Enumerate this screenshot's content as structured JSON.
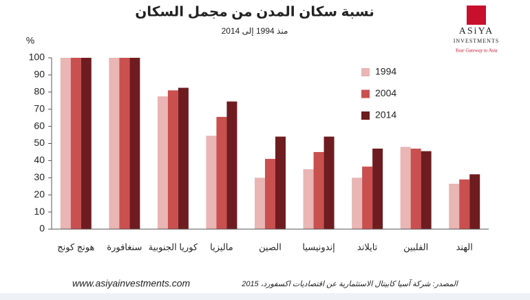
{
  "chart_data": {
    "type": "bar",
    "title": "نسبة سكان المدن من مجمل السكان",
    "subtitle": "منذ 1994 إلى 2014",
    "y_label": "%",
    "categories": [
      "هونج كونج",
      "سنغافورة",
      "كوريا الجنوبية",
      "ماليزيا",
      "الصين",
      "إندونيسيا",
      "تايلاند",
      "الفلبين",
      "الهند"
    ],
    "series": [
      {
        "name": "1994",
        "color": "#e9b5b5",
        "values": [
          100,
          100,
          77.5,
          54.5,
          30,
          35,
          30,
          48,
          26.5
        ]
      },
      {
        "name": "2004",
        "color": "#c9504f",
        "values": [
          100,
          100,
          81,
          65.5,
          41,
          45,
          36.5,
          47,
          29
        ]
      },
      {
        "name": "2014",
        "color": "#6e1c20",
        "values": [
          100,
          100,
          82.5,
          74.5,
          54,
          54,
          47,
          45.5,
          32
        ]
      }
    ],
    "ylim": [
      0,
      100
    ],
    "yticks": [
      0,
      10,
      20,
      30,
      40,
      50,
      60,
      70,
      80,
      90,
      100
    ],
    "grid": false,
    "legend": "right",
    "source": "المصدر: شركة آسيا كابيتال الاستثمارية عن اقتصاديات اكسفورد، 2015",
    "website": "www.asiyainvestments.com"
  },
  "logo": {
    "name": "ASiYA",
    "subtitle": "INVESTMENTS",
    "tagline": "Your Gateway to Asia"
  }
}
